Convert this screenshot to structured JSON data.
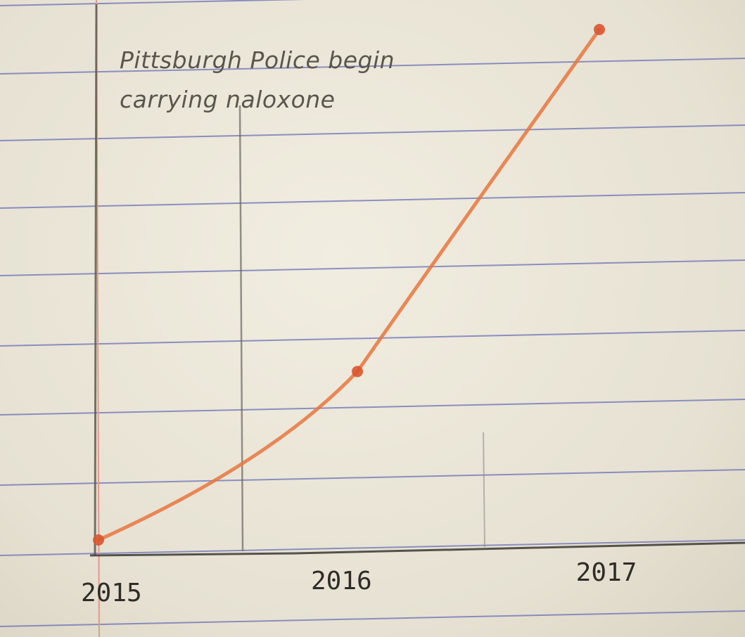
{
  "chart_data": {
    "type": "line",
    "title": "",
    "xlabel": "",
    "ylabel": "",
    "x": [
      "2015",
      "2016",
      "2017"
    ],
    "series": [
      {
        "values": [
          0,
          33,
          100
        ]
      }
    ],
    "ylim": [
      0,
      100
    ],
    "grid": false,
    "annotations": [
      {
        "lines": [
          "Pittsburgh Police begin",
          "carrying naloxone"
        ]
      }
    ],
    "colors": {
      "line": "#e8763e",
      "points": "#d9552f",
      "paper": "#ece8da",
      "rule_lines": "#6a71b8",
      "margin_line": "#e29a86",
      "pencil": "#6b675e"
    }
  }
}
